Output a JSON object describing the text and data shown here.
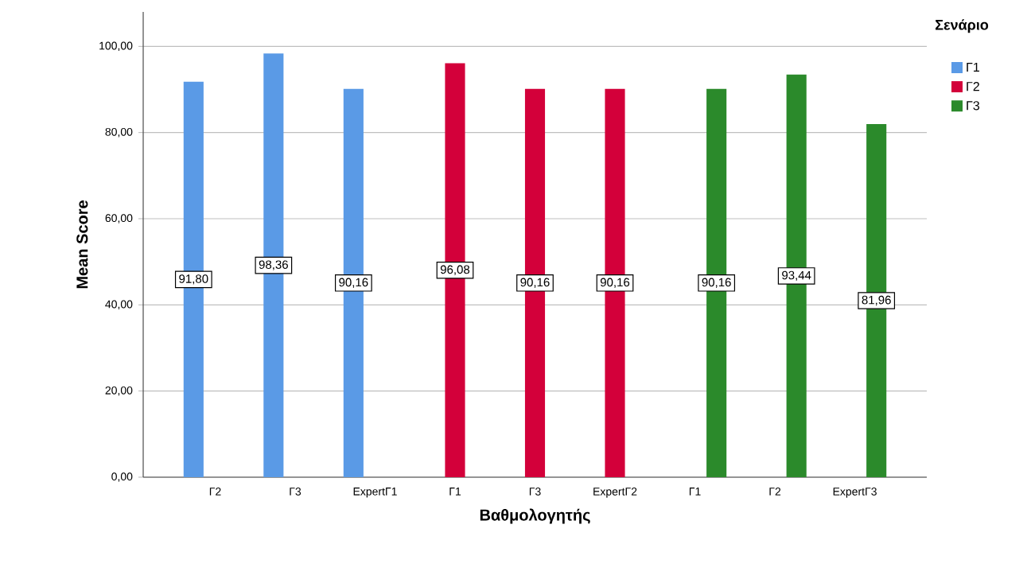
{
  "chart_data": {
    "type": "bar",
    "xlabel": "Βαθμολογητής",
    "ylabel": "Mean Score",
    "legend_title": "Σενάριο",
    "legend": "top right",
    "grid": "y",
    "categories": [
      "Γ2",
      "Γ3",
      "ExpertΓ1",
      "Γ1",
      "Γ3",
      "ExpertΓ2",
      "Γ1",
      "Γ2",
      "ExpertΓ3"
    ],
    "ylim": [
      0,
      108
    ],
    "yticks": [
      {
        "value": 0,
        "label": "0,00"
      },
      {
        "value": 20,
        "label": "20,00"
      },
      {
        "value": 40,
        "label": "40,00"
      },
      {
        "value": 60,
        "label": "60,00"
      },
      {
        "value": 80,
        "label": "80,00"
      },
      {
        "value": 100,
        "label": "100,00"
      }
    ],
    "series": [
      {
        "name": "Γ1",
        "color": "#5a9ae6",
        "values": [
          91.8,
          98.36,
          90.16,
          null,
          null,
          null,
          null,
          null,
          null
        ],
        "value_labels": [
          "91,80",
          "98,36",
          "90,16",
          null,
          null,
          null,
          null,
          null,
          null
        ]
      },
      {
        "name": "Γ2",
        "color": "#d3003a",
        "values": [
          null,
          null,
          null,
          96.08,
          90.16,
          90.16,
          null,
          null,
          null
        ],
        "value_labels": [
          null,
          null,
          null,
          "96,08",
          "90,16",
          "90,16",
          null,
          null,
          null
        ]
      },
      {
        "name": "Γ3",
        "color": "#2b8a2b",
        "values": [
          null,
          null,
          null,
          null,
          null,
          null,
          90.16,
          93.44,
          81.96
        ],
        "value_labels": [
          null,
          null,
          null,
          null,
          null,
          null,
          "90,16",
          "93,44",
          "81,96"
        ]
      }
    ]
  }
}
